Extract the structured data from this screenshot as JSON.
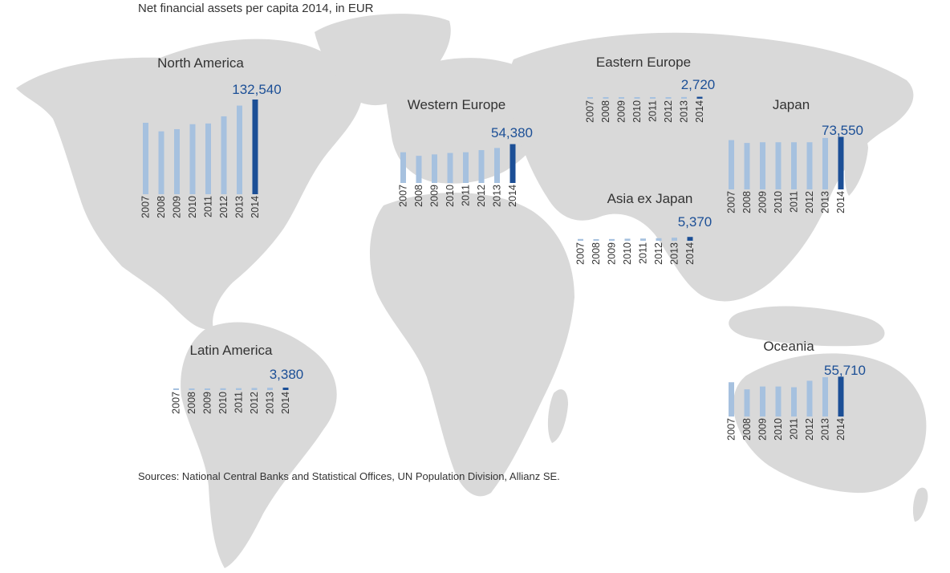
{
  "title": "Net financial assets per capita 2014, in EUR",
  "source": "Sources: National Central Banks and Statistical Offices, UN Population Division, Allianz SE.",
  "colors": {
    "map": "#d9d9d9",
    "bar": "#a6c1df",
    "highlight": "#1c4f96",
    "text": "#333333"
  },
  "chart_data": [
    {
      "type": "bar",
      "title": "North America",
      "categories": [
        "2007",
        "2008",
        "2009",
        "2010",
        "2011",
        "2012",
        "2013",
        "2014"
      ],
      "values": [
        100000,
        88000,
        91000,
        98000,
        99000,
        109000,
        124000,
        132540
      ],
      "value_label": "132,540"
    },
    {
      "type": "bar",
      "title": "Western Europe",
      "categories": [
        "2007",
        "2008",
        "2009",
        "2010",
        "2011",
        "2012",
        "2013",
        "2014"
      ],
      "values": [
        43000,
        38000,
        40000,
        42000,
        43000,
        46000,
        49000,
        54380
      ],
      "value_label": "54,380"
    },
    {
      "type": "bar",
      "title": "Eastern Europe",
      "categories": [
        "2007",
        "2008",
        "2009",
        "2010",
        "2011",
        "2012",
        "2013",
        "2014"
      ],
      "values": [
        1500,
        1200,
        1300,
        1600,
        1700,
        2000,
        2400,
        2720
      ],
      "value_label": "2,720"
    },
    {
      "type": "bar",
      "title": "Japan",
      "categories": [
        "2007",
        "2008",
        "2009",
        "2010",
        "2011",
        "2012",
        "2013",
        "2014"
      ],
      "values": [
        69000,
        65000,
        66000,
        66000,
        66000,
        66000,
        72000,
        73550
      ],
      "value_label": "73,550"
    },
    {
      "type": "bar",
      "title": "Asia ex Japan",
      "categories": [
        "2007",
        "2008",
        "2009",
        "2010",
        "2011",
        "2012",
        "2013",
        "2014"
      ],
      "values": [
        2500,
        2100,
        2400,
        2900,
        3100,
        3600,
        4300,
        5370
      ],
      "value_label": "5,370"
    },
    {
      "type": "bar",
      "title": "Latin America",
      "categories": [
        "2007",
        "2008",
        "2009",
        "2010",
        "2011",
        "2012",
        "2013",
        "2014"
      ],
      "values": [
        2100,
        1900,
        2200,
        2500,
        2600,
        2900,
        3200,
        3380
      ],
      "value_label": "3,380"
    },
    {
      "type": "bar",
      "title": "Oceania",
      "categories": [
        "2007",
        "2008",
        "2009",
        "2010",
        "2011",
        "2012",
        "2013",
        "2014"
      ],
      "values": [
        48000,
        38000,
        42000,
        42000,
        41000,
        50000,
        55000,
        55710
      ],
      "value_label": "55,710"
    }
  ]
}
